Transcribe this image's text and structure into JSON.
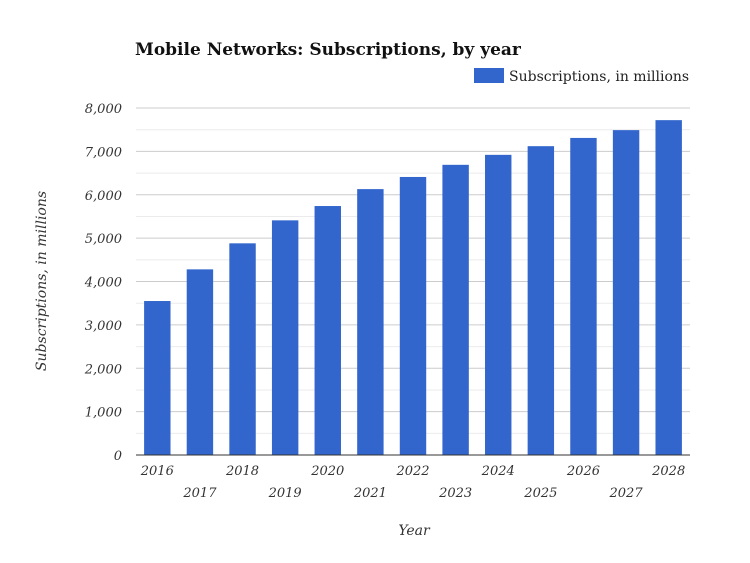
{
  "chart_data": {
    "type": "bar",
    "title": "Mobile Networks: Subscriptions, by year",
    "xlabel": "Year",
    "ylabel": "Subscriptions, in millions",
    "categories": [
      "2016",
      "2017",
      "2018",
      "2019",
      "2020",
      "2021",
      "2022",
      "2023",
      "2024",
      "2025",
      "2026",
      "2027",
      "2028"
    ],
    "series": [
      {
        "name": "Subscriptions, in millions",
        "values": [
          3550,
          4280,
          4880,
          5410,
          5740,
          6130,
          6410,
          6690,
          6920,
          7120,
          7310,
          7490,
          7720
        ],
        "color": "#3366cc"
      }
    ],
    "ylim": [
      0,
      8000
    ],
    "yticks": [
      "0",
      "1,000",
      "2,000",
      "3,000",
      "4,000",
      "5,000",
      "6,000",
      "7,000",
      "8,000"
    ],
    "grid": true,
    "legend": "top-right"
  }
}
